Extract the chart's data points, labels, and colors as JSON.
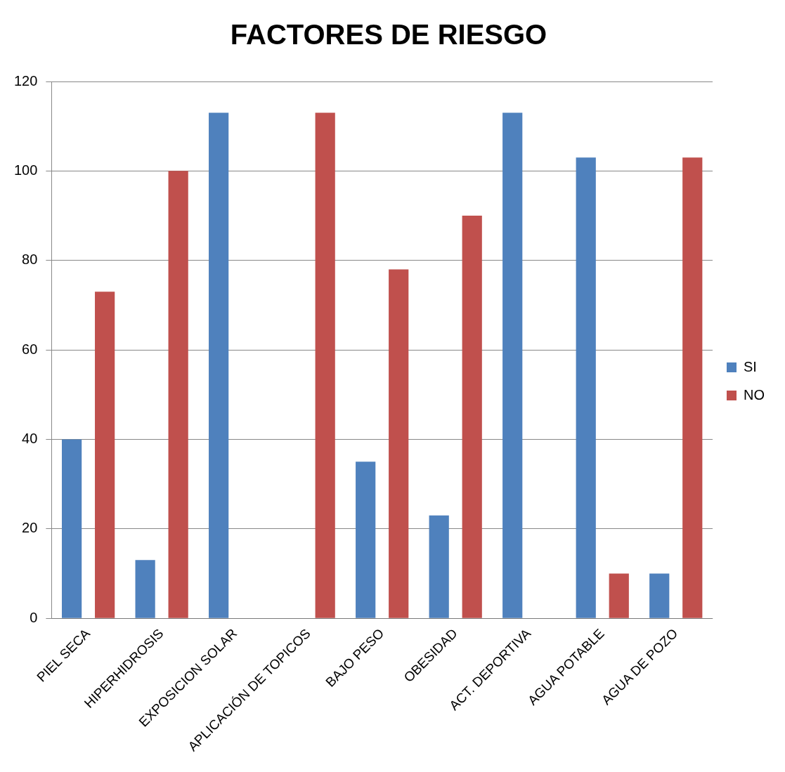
{
  "chart_data": {
    "type": "bar",
    "title": "FACTORES DE RIESGO",
    "categories": [
      "PIEL SECA",
      "HIPERHIDROSIS",
      "EXPOSICION SOLAR",
      "APLICACIÓN DE TOPICOS",
      "BAJO PESO",
      "OBESIDAD",
      "ACT. DEPORTIVA",
      "AGUA POTABLE",
      "AGUA DE POZO"
    ],
    "series": [
      {
        "name": "SI",
        "color": "#4f81bd",
        "values": [
          40,
          13,
          113,
          0,
          35,
          23,
          113,
          103,
          10
        ]
      },
      {
        "name": "NO",
        "color": "#c0504d",
        "values": [
          73,
          100,
          0,
          113,
          78,
          90,
          0,
          10,
          103
        ]
      }
    ],
    "ylim": [
      0,
      120
    ],
    "yticks": [
      0,
      20,
      40,
      60,
      80,
      100,
      120
    ],
    "grid": "y",
    "legend": "right"
  }
}
